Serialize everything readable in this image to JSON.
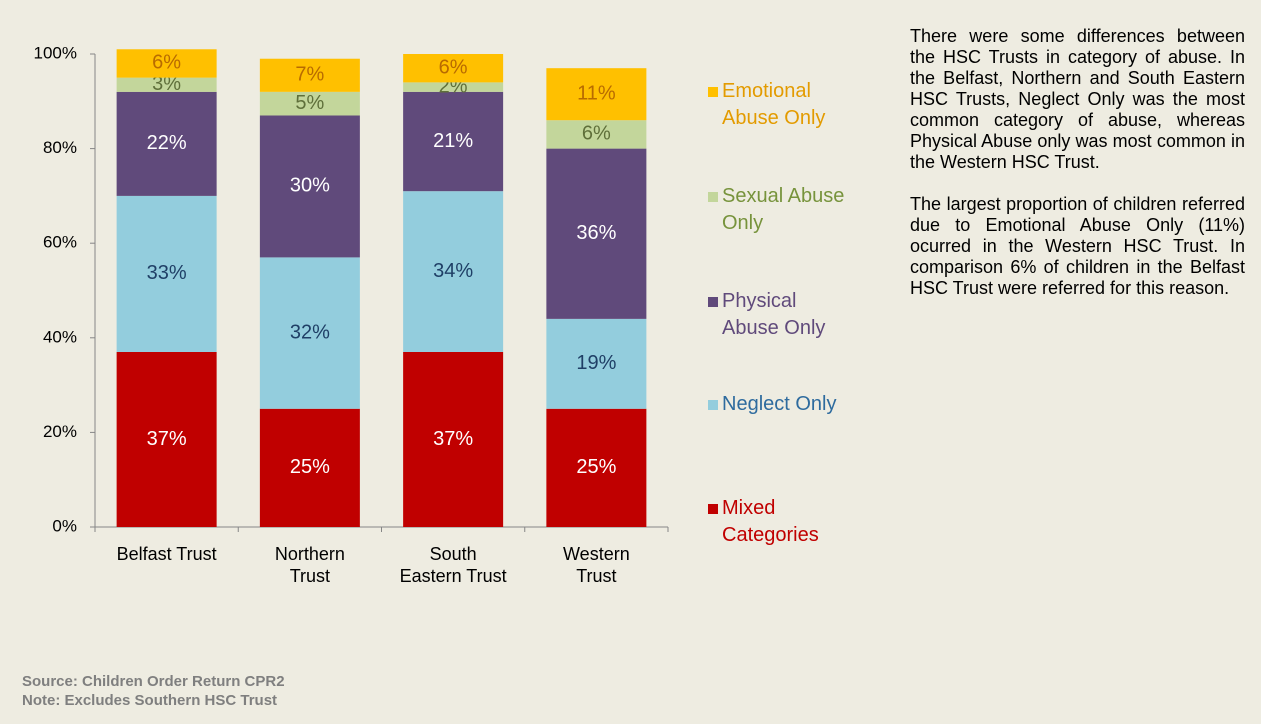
{
  "chart_data": {
    "type": "stacked_bar",
    "categories": [
      "Belfast Trust",
      "Northern Trust",
      "South Eastern Trust",
      "Western Trust"
    ],
    "series": [
      {
        "name": "Mixed Categories",
        "color": "#c00000",
        "label_color": "#ffffff",
        "legend_text_color": "#c00000",
        "values": [
          37,
          25,
          37,
          25
        ],
        "value_labels": [
          "37%",
          "25%",
          "37%",
          "25%"
        ]
      },
      {
        "name": "Neglect Only",
        "color": "#93cddd",
        "label_color": "#1f3f66",
        "legend_text_color": "#2e6b9e",
        "values": [
          33,
          32,
          34,
          19
        ],
        "value_labels": [
          "33%",
          "32%",
          "34%",
          "19%"
        ]
      },
      {
        "name": "Physical Abuse Only",
        "color": "#604a7b",
        "label_color": "#ffffff",
        "legend_text_color": "#604a7b",
        "values": [
          22,
          30,
          21,
          36
        ],
        "value_labels": [
          "22%",
          "30%",
          "21%",
          "36%"
        ]
      },
      {
        "name": "Sexual Abuse Only",
        "color": "#c3d69b",
        "label_color": "#5f6f3a",
        "legend_text_color": "#77933c",
        "values": [
          3,
          5,
          2,
          6
        ],
        "value_labels": [
          "3%",
          "5%",
          "2%",
          "6%"
        ]
      },
      {
        "name": "Emotional Abuse Only",
        "color": "#ffc000",
        "label_color": "#b86b00",
        "legend_text_color": "#e39b00",
        "values": [
          6,
          7,
          6,
          11
        ],
        "value_labels": [
          "6%",
          "7%",
          "6%",
          "11%"
        ]
      }
    ],
    "ylim": [
      0,
      100
    ],
    "yticks": [
      {
        "value": 0,
        "label": "0%"
      },
      {
        "value": 20,
        "label": "20%"
      },
      {
        "value": 40,
        "label": "40%"
      },
      {
        "value": 60,
        "label": "60%"
      },
      {
        "value": 80,
        "label": "80%"
      },
      {
        "value": 100,
        "label": "100%"
      }
    ],
    "legend": "right"
  },
  "commentary": [
    "There were some differences between the HSC Trusts in category of abuse. In the Belfast, Northern and South Eastern HSC Trusts, Neglect Only was the most common category of abuse, whereas Physical Abuse only was most common in the Western HSC Trust.",
    "The largest proportion of children referred due to Emotional Abuse Only (11%) ocurred in the Western HSC Trust. In comparison 6% of children in the Belfast HSC Trust were referred for this reason."
  ],
  "source": "Source: Children Order Return CPR2",
  "note": "Note: Excludes Southern HSC Trust"
}
